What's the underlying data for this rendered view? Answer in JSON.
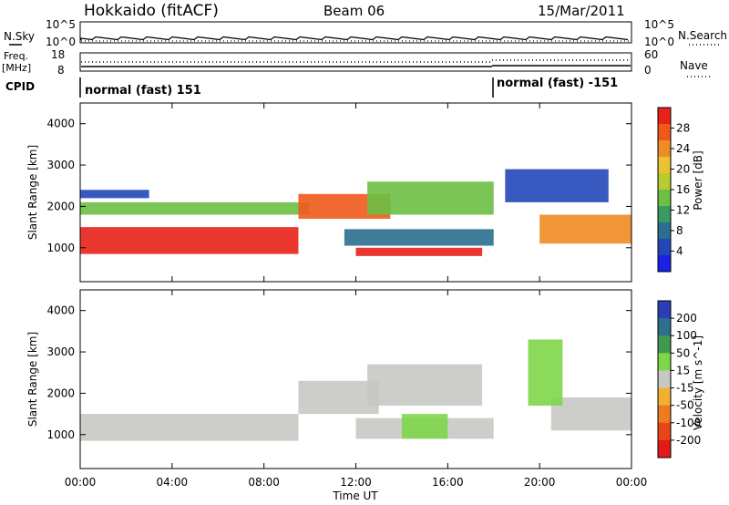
{
  "header": {
    "station": "Hokkaido (fitACF)",
    "beam": "Beam 06",
    "date": "15/Mar/2011"
  },
  "top_panels": {
    "nsky_label": "N.Sky",
    "nsky_ticks": [
      "10^5",
      "10^0"
    ],
    "nsearch_label": "N.Search",
    "nsearch_ticks": [
      "10^5",
      "10^0"
    ],
    "freq_label_1": "Freq.",
    "freq_label_2": "[MHz]",
    "freq_ticks": [
      "18",
      "8"
    ],
    "nave_label": "Nave",
    "nave_ticks": [
      "60",
      "0"
    ],
    "cpid_label": "CPID",
    "cpid_segments": [
      {
        "label": "normal (fast) 151",
        "start_hour": 0,
        "end_hour": 18
      },
      {
        "label": "normal (fast) -151",
        "start_hour": 18,
        "end_hour": 24
      }
    ]
  },
  "chart_data": [
    {
      "type": "heatmap",
      "name": "power",
      "ylabel": "Slant Range [km]",
      "xlim": [
        0,
        24
      ],
      "ylim": [
        180,
        4500
      ],
      "yticks": [
        "4000",
        "3000",
        "2000",
        "1000"
      ],
      "ytick_values": [
        4000,
        3000,
        2000,
        1000
      ],
      "colorbar_label": "Power [dB]",
      "colorbar_ticks": [
        "28",
        "24",
        "20",
        "16",
        "12",
        "8",
        "4"
      ],
      "colorbar_colors": [
        "#e8221a",
        "#ef5a1c",
        "#f08c25",
        "#e9c334",
        "#b7cc2e",
        "#6dbf44",
        "#3a9a62",
        "#2a6f8f",
        "#2247b8",
        "#1a20e6"
      ],
      "features": [
        {
          "t0": 0,
          "t1": 9.5,
          "r0": 850,
          "r1": 1500,
          "level": 0
        },
        {
          "t0": 0,
          "t1": 10,
          "r0": 1800,
          "r1": 2100,
          "level": 5
        },
        {
          "t0": 0,
          "t1": 3,
          "r0": 2200,
          "r1": 2400,
          "level": 8
        },
        {
          "t0": 9.5,
          "t1": 13.5,
          "r0": 1700,
          "r1": 2300,
          "level": 1
        },
        {
          "t0": 12.5,
          "t1": 18,
          "r0": 1800,
          "r1": 2600,
          "level": 5
        },
        {
          "t0": 11.5,
          "t1": 18,
          "r0": 1050,
          "r1": 1450,
          "level": 7
        },
        {
          "t0": 12,
          "t1": 17.5,
          "r0": 800,
          "r1": 1000,
          "level": 0
        },
        {
          "t0": 20,
          "t1": 24,
          "r0": 1100,
          "r1": 1800,
          "level": 2
        },
        {
          "t0": 18.5,
          "t1": 23,
          "r0": 2100,
          "r1": 2900,
          "level": 8
        }
      ]
    },
    {
      "type": "heatmap",
      "name": "velocity",
      "ylabel": "Slant Range [km]",
      "xlabel": "Time UT",
      "xlim": [
        0,
        24
      ],
      "ylim": [
        180,
        4500
      ],
      "xticks": [
        "00:00",
        "04:00",
        "08:00",
        "12:00",
        "16:00",
        "20:00",
        "00:00"
      ],
      "xtick_values": [
        0,
        4,
        8,
        12,
        16,
        20,
        24
      ],
      "yticks": [
        "4000",
        "3000",
        "2000",
        "1000"
      ],
      "ytick_values": [
        4000,
        3000,
        2000,
        1000
      ],
      "colorbar_label": "Velocity [m s^-1]",
      "colorbar_ticks": [
        "200",
        "100",
        "50",
        "15",
        "-15",
        "-50",
        "-100",
        "-200"
      ],
      "colorbar_colors": [
        "#2a3fb5",
        "#2f6e8f",
        "#3f9a4f",
        "#7fd64a",
        "#c8c8c3",
        "#f0b030",
        "#f07a20",
        "#e84518",
        "#e31a1a"
      ],
      "features": [
        {
          "t0": 0,
          "t1": 9.5,
          "r0": 850,
          "r1": 1500,
          "level": 4
        },
        {
          "t0": 9.5,
          "t1": 13,
          "r0": 1500,
          "r1": 2300,
          "level": 4
        },
        {
          "t0": 12.5,
          "t1": 17.5,
          "r0": 1700,
          "r1": 2700,
          "level": 4
        },
        {
          "t0": 12,
          "t1": 18,
          "r0": 900,
          "r1": 1400,
          "level": 4
        },
        {
          "t0": 14,
          "t1": 16,
          "r0": 900,
          "r1": 1500,
          "level": 3
        },
        {
          "t0": 20.5,
          "t1": 24,
          "r0": 1100,
          "r1": 1900,
          "level": 4
        },
        {
          "t0": 19.5,
          "t1": 21,
          "r0": 1700,
          "r1": 3300,
          "level": 3
        }
      ]
    }
  ]
}
